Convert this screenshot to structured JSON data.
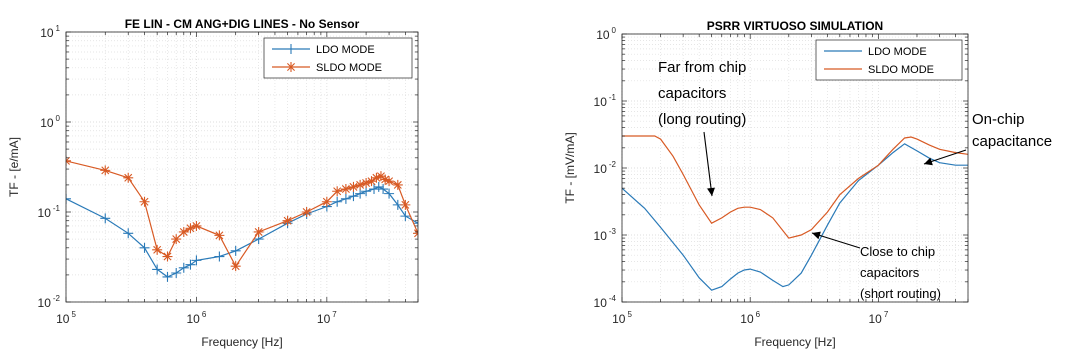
{
  "colors": {
    "ldo": "#2a7ab8",
    "sldo": "#d85a24",
    "grid": "#dedede",
    "axis": "#262626"
  },
  "chart_data": [
    {
      "type": "line",
      "title": "FE LIN - CM ANG+DIG LINES - No Sensor",
      "xlabel": "Frequency [Hz]",
      "ylabel": "TF - [e/mA]",
      "x_scale": "log",
      "y_scale": "log",
      "xlim": [
        100000,
        50000000
      ],
      "ylim": [
        0.01,
        10
      ],
      "grid": true,
      "legend_position": "top-right",
      "x_ticks": [
        {
          "base": "10",
          "exp": "5"
        },
        {
          "base": "10",
          "exp": "6"
        },
        {
          "base": "10",
          "exp": "7"
        }
      ],
      "y_ticks": [
        {
          "base": "10",
          "exp": "1"
        },
        {
          "base": "10",
          "exp": "0"
        },
        {
          "base": "10",
          "exp": "-1"
        },
        {
          "base": "10",
          "exp": "-2"
        }
      ],
      "series": [
        {
          "name": "LDO MODE",
          "color_key": "ldo",
          "marker": "plus",
          "x": [
            100000,
            200000,
            300000,
            400000,
            500000,
            600000,
            700000,
            800000,
            900000,
            1000000,
            1500000,
            2000000,
            3000000,
            5000000,
            7000000,
            10000000,
            12000000,
            14000000,
            16000000,
            18000000,
            20000000,
            23000000,
            25000000,
            27000000,
            30000000,
            35000000,
            40000000,
            50000000
          ],
          "y": [
            0.14,
            0.085,
            0.058,
            0.04,
            0.023,
            0.019,
            0.021,
            0.024,
            0.026,
            0.029,
            0.032,
            0.037,
            0.05,
            0.075,
            0.095,
            0.115,
            0.13,
            0.14,
            0.15,
            0.16,
            0.17,
            0.18,
            0.19,
            0.18,
            0.16,
            0.12,
            0.09,
            0.075
          ]
        },
        {
          "name": "SLDO MODE",
          "color_key": "sldo",
          "marker": "star",
          "x": [
            100000,
            200000,
            300000,
            400000,
            500000,
            600000,
            700000,
            800000,
            900000,
            1000000,
            1500000,
            2000000,
            3000000,
            5000000,
            7000000,
            10000000,
            12000000,
            14000000,
            16000000,
            18000000,
            20000000,
            22000000,
            24000000,
            26000000,
            28000000,
            30000000,
            35000000,
            40000000,
            50000000
          ],
          "y": [
            0.37,
            0.29,
            0.24,
            0.13,
            0.038,
            0.032,
            0.05,
            0.06,
            0.066,
            0.07,
            0.055,
            0.025,
            0.06,
            0.08,
            0.1,
            0.13,
            0.17,
            0.18,
            0.19,
            0.2,
            0.21,
            0.22,
            0.24,
            0.25,
            0.23,
            0.22,
            0.2,
            0.12,
            0.058
          ]
        }
      ]
    },
    {
      "type": "line",
      "title": "PSRR VIRTUOSO SIMULATION",
      "xlabel": "Frequency [Hz]",
      "ylabel": "TF - [mV/mA]",
      "x_scale": "log",
      "y_scale": "log",
      "xlim": [
        100000,
        50000000
      ],
      "ylim": [
        0.0001,
        1
      ],
      "grid": true,
      "legend_position": "top-right",
      "x_ticks": [
        {
          "base": "10",
          "exp": "5"
        },
        {
          "base": "10",
          "exp": "6"
        },
        {
          "base": "10",
          "exp": "7"
        }
      ],
      "y_ticks": [
        {
          "base": "10",
          "exp": "0"
        },
        {
          "base": "10",
          "exp": "-1"
        },
        {
          "base": "10",
          "exp": "-2"
        },
        {
          "base": "10",
          "exp": "-3"
        },
        {
          "base": "10",
          "exp": "-4"
        }
      ],
      "series": [
        {
          "name": "LDO MODE",
          "color_key": "ldo",
          "x": [
            100000,
            150000,
            200000,
            300000,
            400000,
            500000,
            600000,
            700000,
            800000,
            900000,
            1000000,
            1200000,
            1500000,
            1800000,
            2000000,
            2500000,
            3000000,
            4000000,
            5000000,
            7000000,
            10000000,
            13000000,
            16000000,
            20000000,
            25000000,
            30000000,
            40000000,
            50000000
          ],
          "y": [
            0.005,
            0.0025,
            0.0013,
            0.0005,
            0.00023,
            0.00015,
            0.00017,
            0.00022,
            0.00027,
            0.0003,
            0.00031,
            0.00028,
            0.00021,
            0.00017,
            0.00018,
            0.00027,
            0.0005,
            0.0014,
            0.003,
            0.0065,
            0.011,
            0.017,
            0.023,
            0.018,
            0.014,
            0.012,
            0.011,
            0.011
          ]
        },
        {
          "name": "SLDO MODE",
          "color_key": "sldo",
          "x": [
            100000,
            150000,
            180000,
            200000,
            250000,
            300000,
            400000,
            500000,
            600000,
            700000,
            800000,
            900000,
            1000000,
            1200000,
            1500000,
            2000000,
            2500000,
            3000000,
            4000000,
            5000000,
            7000000,
            10000000,
            13000000,
            16000000,
            18000000,
            20000000,
            25000000,
            30000000,
            40000000,
            50000000
          ],
          "y": [
            0.03,
            0.03,
            0.03,
            0.027,
            0.015,
            0.008,
            0.0028,
            0.0015,
            0.0018,
            0.0022,
            0.0025,
            0.0026,
            0.0026,
            0.0024,
            0.0018,
            0.0009,
            0.001,
            0.0012,
            0.0022,
            0.004,
            0.007,
            0.011,
            0.019,
            0.028,
            0.029,
            0.027,
            0.022,
            0.019,
            0.017,
            0.016
          ]
        }
      ],
      "annotations": {
        "far": [
          "Far from chip",
          "capacitors",
          "(long routing)"
        ],
        "onchip": [
          "On-chip",
          "capacitance"
        ],
        "close": [
          "Close to chip",
          "capacitors",
          "(short routing)"
        ]
      }
    }
  ]
}
